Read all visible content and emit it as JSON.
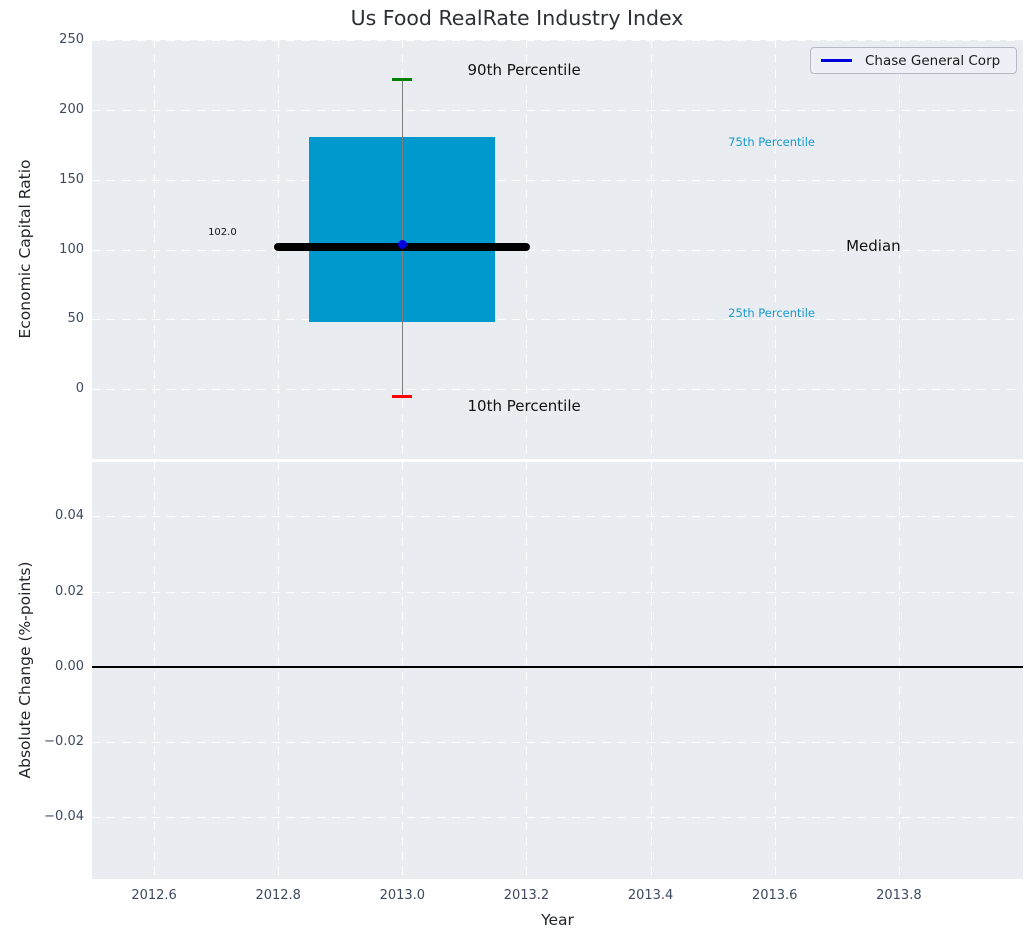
{
  "chart_data": {
    "type": "boxplot",
    "title": "Us Food RealRate Industry Index",
    "xlabel": "Year",
    "xlim": [
      2012.5,
      2014.0
    ],
    "xticks": {
      "values": [
        2012.6,
        2012.8,
        2013.0,
        2013.2,
        2013.4,
        2013.6,
        2013.8
      ],
      "labels": [
        "2012.6",
        "2012.8",
        "2013.0",
        "2013.2",
        "2013.4",
        "2013.6",
        "2013.8"
      ]
    },
    "legend": {
      "label": "Chase General Corp",
      "line_color": "#0000dd",
      "location": "upper right"
    },
    "grid": {
      "on": true,
      "style": "dashed",
      "color": "#ffffff"
    },
    "panels": [
      {
        "name": "economic-capital-ratio",
        "ylabel": "Economic Capital Ratio",
        "ylim": [
          -50,
          250
        ],
        "yticks": {
          "values": [
            250,
            200,
            150,
            100,
            50,
            0
          ],
          "labels": [
            "250",
            "200",
            "150",
            "100",
            "50",
            "0"
          ]
        },
        "boxplot": {
          "x": 2013.0,
          "p90": 222,
          "p75": 180.5,
          "median": 102.0,
          "p25": 48,
          "p10": -5.5,
          "box_halfwidth": 0.15,
          "median_line_halfwidth": 0.2,
          "box_color": "#0099ce",
          "median_color": "#000000",
          "whisker_color": "#7f7f7f",
          "cap90_color": "#008000",
          "cap10_color": "#ff0000"
        },
        "series": [
          {
            "name": "Chase General Corp",
            "color": "#0000dd",
            "points": [
              {
                "x": 2013.0,
                "y": 102.0
              }
            ]
          }
        ],
        "annotations": [
          {
            "text": "90th Percentile",
            "x": 2013.105,
            "y": 228,
            "color": "#111111",
            "size": 15
          },
          {
            "text": "10th Percentile",
            "x": 2013.105,
            "y": -12,
            "color": "#111111",
            "size": 15
          },
          {
            "text": "75th Percentile",
            "x": 2013.525,
            "y": 176,
            "color": "#1899ce",
            "size": 11.5
          },
          {
            "text": "25th Percentile",
            "x": 2013.525,
            "y": 54,
            "color": "#1899ce",
            "size": 11.5
          },
          {
            "text": "Median",
            "x": 2013.715,
            "y": 102.5,
            "color": "#111111",
            "size": 15
          },
          {
            "text": "102.0",
            "x": 2012.687,
            "y": 112,
            "color": "#111111",
            "size": 10
          }
        ]
      },
      {
        "name": "absolute-change",
        "ylabel": "Absolute Change (%-points)",
        "ylim": [
          -0.0565,
          0.0545
        ],
        "yticks": {
          "values": [
            0.04,
            0.02,
            0,
            -0.02,
            -0.04
          ],
          "labels": [
            "0.04",
            "0.02",
            "0.00",
            "−0.02",
            "−0.04"
          ]
        },
        "zero_line": {
          "y": 0.0,
          "color": "#000000"
        },
        "series": []
      }
    ],
    "style": {
      "axes_bg": "#e9edf1",
      "tick_color": "#3d4a60",
      "title_color": "#2d2f36"
    }
  }
}
